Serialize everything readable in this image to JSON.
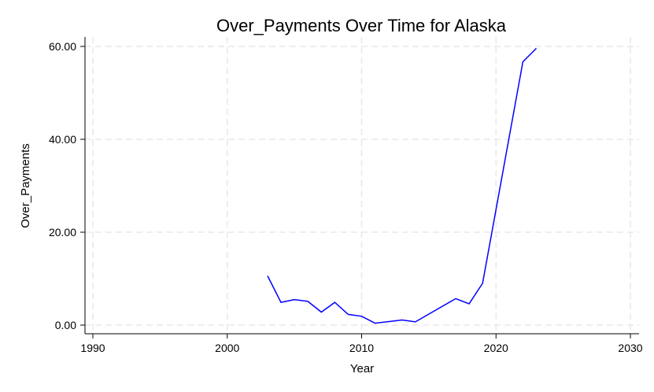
{
  "chart_data": {
    "type": "line",
    "title": "Over_Payments Over Time for Alaska",
    "xlabel": "Year",
    "ylabel": "Over_Payments",
    "xlim": [
      1990,
      2030
    ],
    "ylim": [
      -1.5,
      61.5
    ],
    "x_ticks": [
      1990,
      2000,
      2010,
      2020,
      2030
    ],
    "x_tick_labels": [
      "1990",
      "2000",
      "2010",
      "2020",
      "2030"
    ],
    "y_ticks": [
      0,
      20,
      40,
      60
    ],
    "y_tick_labels": [
      "0.00",
      "20.00",
      "40.00",
      "60.00"
    ],
    "grid": true,
    "series": [
      {
        "color": "#0000ff",
        "x": [
          2003,
          2004,
          2005,
          2006,
          2007,
          2008,
          2009,
          2010,
          2011,
          2013,
          2014,
          2017,
          2018,
          2019,
          2022,
          2023
        ],
        "values": [
          10.6,
          4.9,
          5.5,
          5.1,
          2.8,
          4.9,
          2.3,
          1.9,
          0.4,
          1.1,
          0.7,
          5.7,
          4.6,
          9.0,
          56.7,
          59.6
        ]
      }
    ]
  }
}
